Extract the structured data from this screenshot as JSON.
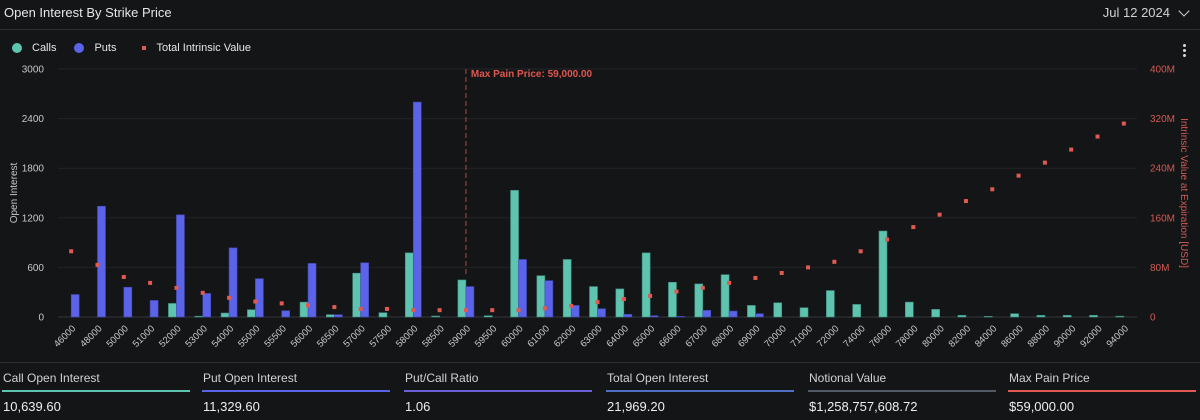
{
  "header": {
    "title": "Open Interest By Strike Price",
    "date": "Jul 12 2024"
  },
  "legend": {
    "calls": "Calls",
    "puts": "Puts",
    "intrinsic": "Total Intrinsic Value"
  },
  "colors": {
    "calls": "#5ec4b0",
    "puts": "#5b63e8",
    "intrinsic": "#e05a52",
    "total_oi": "#4f6fc4",
    "notional": "#525a66",
    "ratio": "#6b60d6"
  },
  "chart_data": {
    "type": "bar",
    "title": "Open Interest By Strike Price",
    "xlabel": "",
    "ylabel": "Open Interest",
    "y2label": "Intrinsic Value at Expiration [USD]",
    "ylim": [
      0,
      3000
    ],
    "y2lim": [
      0,
      400000000
    ],
    "yticks": [
      "0",
      "600",
      "1200",
      "1800",
      "2400",
      "3000"
    ],
    "y2ticks": [
      "0",
      "80M",
      "160M",
      "240M",
      "320M",
      "400M"
    ],
    "grid": true,
    "legend_position": "top-left",
    "annotation": "Max Pain Price: 59,000.00",
    "max_pain_category": "59000",
    "categories": [
      "46000",
      "48000",
      "50000",
      "51000",
      "52000",
      "53000",
      "54000",
      "55000",
      "55500",
      "56000",
      "56500",
      "57000",
      "57500",
      "58000",
      "58500",
      "59000",
      "59500",
      "60000",
      "61000",
      "62000",
      "63000",
      "64000",
      "65000",
      "66000",
      "67000",
      "68000",
      "69000",
      "70000",
      "71000",
      "72000",
      "74000",
      "76000",
      "78000",
      "80000",
      "82000",
      "84000",
      "86000",
      "88000",
      "90000",
      "92000",
      "94000"
    ],
    "series": [
      {
        "name": "Calls",
        "type": "bar",
        "values": [
          0,
          0,
          0,
          0,
          164,
          10,
          48,
          88,
          0,
          180,
          28,
          530,
          52,
          776,
          12,
          448,
          16,
          1532,
          500,
          696,
          368,
          340,
          776,
          420,
          400,
          512,
          140,
          172,
          112,
          320,
          152,
          1040,
          180,
          92,
          20,
          8,
          40,
          20,
          20,
          20,
          10
        ]
      },
      {
        "name": "Puts",
        "type": "bar",
        "values": [
          272,
          1340,
          360,
          200,
          1236,
          285,
          836,
          464,
          76,
          648,
          28,
          656,
          0,
          2600,
          0,
          368,
          0,
          696,
          440,
          140,
          100,
          32,
          16,
          8,
          80,
          72,
          40,
          0,
          0,
          0,
          0,
          0,
          0,
          0,
          0,
          0,
          0,
          0,
          0,
          0,
          0
        ]
      },
      {
        "name": "Total Intrinsic Value",
        "type": "scatter",
        "axis": "right",
        "values": [
          106000000,
          84000000,
          64500000,
          55000000,
          47000000,
          39000000,
          31000000,
          25000000,
          22000000,
          19000000,
          16000000,
          13000000,
          13000000,
          11000000,
          11000000,
          11000000,
          11000000,
          11000000,
          14000000,
          18000000,
          24000000,
          29000000,
          34000000,
          41000000,
          47000000,
          55000000,
          63000000,
          71000000,
          80000000,
          89000000,
          106000000,
          125000000,
          145000000,
          165000000,
          187000000,
          206000000,
          228000000,
          249000000,
          270000000,
          291000000,
          312000000
        ]
      }
    ]
  },
  "stats": [
    {
      "label": "Call Open Interest",
      "value": "10,639.60",
      "color": "#5ec4b0"
    },
    {
      "label": "Put Open Interest",
      "value": "11,329.60",
      "color": "#5b63e8"
    },
    {
      "label": "Put/Call Ratio",
      "value": "1.06",
      "color": "#6b60d6"
    },
    {
      "label": "Total Open Interest",
      "value": "21,969.20",
      "color": "#4f6fc4"
    },
    {
      "label": "Notional Value",
      "value": "$1,258,757,608.72",
      "color": "#525a66"
    },
    {
      "label": "Max Pain Price",
      "value": "$59,000.00",
      "color": "#e05a52"
    }
  ]
}
